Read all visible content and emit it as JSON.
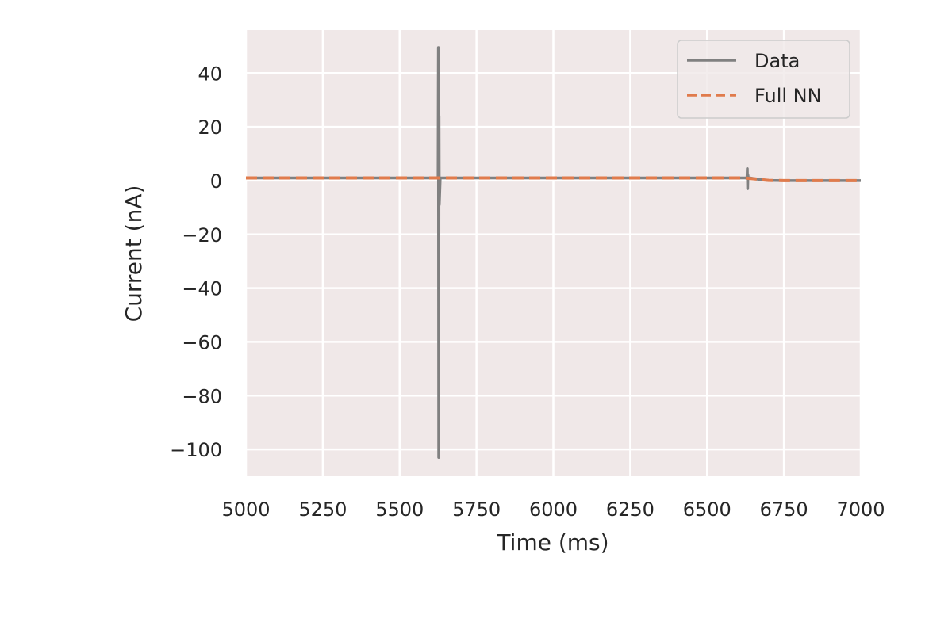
{
  "chart_data": {
    "type": "line",
    "xlabel": "Time (ms)",
    "ylabel": "Current (nA)",
    "xlim": [
      5000,
      7000
    ],
    "ylim": [
      -110,
      56
    ],
    "xticks": [
      5000,
      5250,
      5500,
      5750,
      6000,
      6250,
      6500,
      6750,
      7000
    ],
    "yticks": [
      40,
      20,
      0,
      -20,
      -40,
      -60,
      -80,
      -100
    ],
    "grid": true,
    "legend_placement": "top-right",
    "background": "#f0e8e8",
    "series": [
      {
        "name": "Data",
        "color": "#808080",
        "style": "solid",
        "x": [
          5000,
          5625,
          5626,
          5627,
          5628,
          5629,
          5632,
          5640,
          5700,
          6000,
          6300,
          6630,
          6631,
          6632,
          6633,
          6634,
          6640,
          6660,
          6680,
          6700,
          6750,
          6800,
          7000
        ],
        "y": [
          1,
          1,
          49.5,
          -103,
          24,
          -9,
          1,
          1,
          1,
          1,
          1,
          1,
          4.5,
          -3,
          2,
          1,
          1,
          0.6,
          0.3,
          0.1,
          0,
          0,
          0
        ]
      },
      {
        "name": "Full NN",
        "color": "#e07b4c",
        "style": "dashed",
        "x": [
          5000,
          5600,
          5700,
          6000,
          6300,
          6620,
          6660,
          6680,
          6700,
          6750,
          6800,
          7000
        ],
        "y": [
          1,
          1,
          1,
          1,
          1,
          1,
          0.6,
          0.3,
          0.1,
          0,
          0,
          0
        ]
      }
    ]
  }
}
